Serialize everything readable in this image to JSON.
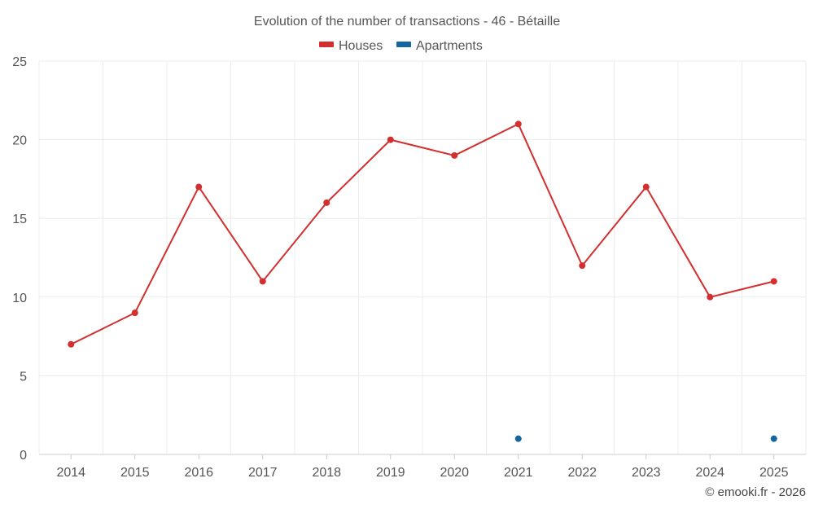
{
  "chart_data": {
    "type": "line",
    "title": "Evolution of the number of transactions - 46 - Bétaille",
    "categories": [
      "2014",
      "2015",
      "2016",
      "2017",
      "2018",
      "2019",
      "2020",
      "2021",
      "2022",
      "2023",
      "2024",
      "2025"
    ],
    "ylim": [
      0,
      25
    ],
    "yticks": [
      0,
      5,
      10,
      15,
      20,
      25
    ],
    "grid": true,
    "legend_position": "top-center",
    "series": [
      {
        "name": "Houses",
        "color": "#d32f2f",
        "values": [
          7,
          9,
          17,
          11,
          16,
          20,
          19,
          21,
          12,
          17,
          10,
          11
        ]
      },
      {
        "name": "Apartments",
        "color": "#1565a0",
        "values": [
          null,
          null,
          null,
          null,
          null,
          null,
          null,
          1,
          null,
          null,
          null,
          1
        ]
      }
    ],
    "credit": "© emooki.fr - 2026"
  }
}
